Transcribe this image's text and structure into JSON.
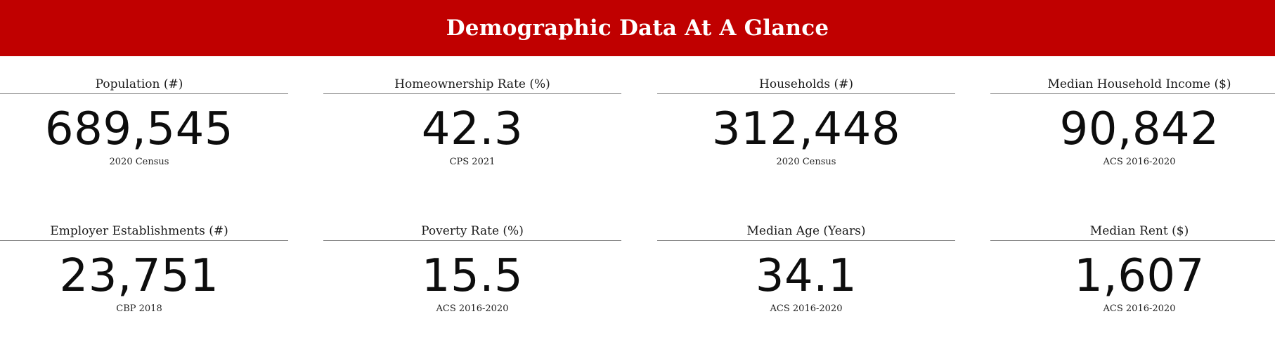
{
  "header": {
    "title": "Demographic Data At A Glance",
    "background_color": "#c00000"
  },
  "stats": [
    {
      "label": "Population (#)",
      "value": "689,545",
      "source": "2020 Census"
    },
    {
      "label": "Homeownership Rate (%)",
      "value": "42.3",
      "source": "CPS 2021"
    },
    {
      "label": "Households (#)",
      "value": "312,448",
      "source": "2020 Census"
    },
    {
      "label": "Median Household Income ($)",
      "value": "90,842",
      "source": "ACS 2016-2020"
    },
    {
      "label": "Employer Establishments (#)",
      "value": "23,751",
      "source": "CBP 2018"
    },
    {
      "label": "Poverty Rate (%)",
      "value": "15.5",
      "source": "ACS 2016-2020"
    },
    {
      "label": "Median Age (Years)",
      "value": "34.1",
      "source": "ACS 2016-2020"
    },
    {
      "label": "Median Rent ($)",
      "value": "1,607",
      "source": "ACS 2016-2020"
    }
  ]
}
